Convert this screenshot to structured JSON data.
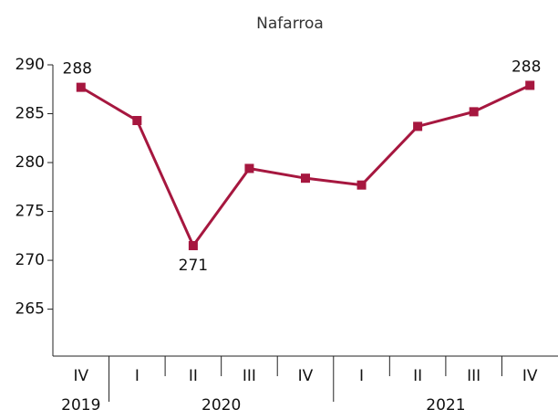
{
  "chart_data": {
    "type": "line",
    "title": "Nafarroa",
    "categories": [
      "IV",
      "I",
      "II",
      "III",
      "IV",
      "I",
      "II",
      "III",
      "IV"
    ],
    "groups": [
      {
        "label": "2019",
        "start": 0,
        "count": 1
      },
      {
        "label": "2020",
        "start": 1,
        "count": 4
      },
      {
        "label": "2021",
        "start": 5,
        "count": 4
      }
    ],
    "series": [
      {
        "name": "Nafarroa",
        "color": "#a6173f",
        "values": [
          287.7,
          284.3,
          271.5,
          279.4,
          278.4,
          277.7,
          283.7,
          285.2,
          287.9
        ],
        "value_labels": [
          "288",
          null,
          "271",
          null,
          null,
          null,
          null,
          null,
          "288"
        ]
      }
    ],
    "ylim": [
      260.2,
      290
    ],
    "yticks": [
      265,
      270,
      275,
      280,
      285,
      290
    ],
    "grid": false
  }
}
